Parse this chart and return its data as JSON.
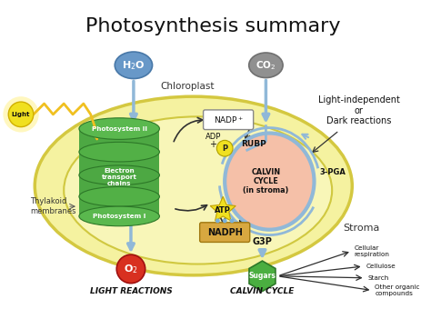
{
  "title": "Photosynthesis summary",
  "title_fontsize": 16,
  "bg_color": "#ffffff",
  "chloroplast_outer_color": "#f5f0a0",
  "chloroplast_edge_color": "#d4c840",
  "thylakoid_color": "#4aae40",
  "thylakoid_edge_color": "#2d7828",
  "calvin_color": "#f5c0a8",
  "calvin_edge_color": "#90b8d8",
  "h2o_color": "#6898c8",
  "co2_color": "#909090",
  "o2_color": "#d83020",
  "sugars_color": "#4aae40",
  "nadp_color": "#ffffff",
  "nadph_color": "#d8a840",
  "atp_color": "#f0e020",
  "p_color": "#f0e020",
  "blue_arr": "#90b8d8",
  "black_arr": "#303030",
  "sun_color": "#f0e020",
  "sun_ray_color": "#f0c020",
  "stroma_text": "Stroma",
  "chloroplast_text": "Chloroplast",
  "thylakoid_label": "Thylakoid\nmembranes",
  "ps2_text": "Photosystem II",
  "etc_text": "Electron\ntransport\nchains",
  "ps1_text": "Photosystem I",
  "calvin_text": "CALVIN\nCYCLE\n(in stroma)",
  "pga3_text": "3-PGA",
  "rubp_text": "RUBP",
  "g3p_text": "G3P",
  "light_reactions_label": "LIGHT REACTIONS",
  "calvin_cycle_label": "CALVIN CYCLE",
  "light_independent": "Light-independent\nor\nDark reactions",
  "light_text": "Light",
  "products": [
    "Cellular\nrespiration",
    "Cellulose",
    "Starch",
    "Other organic\ncompounds"
  ]
}
